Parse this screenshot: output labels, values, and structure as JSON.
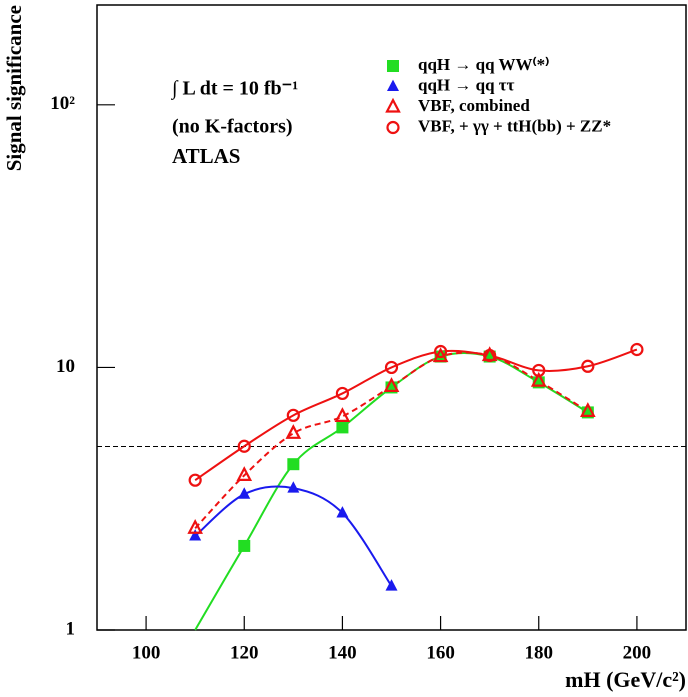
{
  "chart_data": {
    "type": "line",
    "annotations": [
      "∫ L dt = 10 fb⁻¹",
      "(no K-factors)",
      "ATLAS"
    ],
    "x_label": "mH (GeV/c²)",
    "y_label": "Signal significance",
    "log_y": true,
    "xlim": [
      90,
      210
    ],
    "ylim": [
      1,
      240
    ],
    "xticks": [
      100,
      120,
      140,
      160,
      180,
      200
    ],
    "yticks": [
      1,
      10,
      {
        "value": 100,
        "label": "10²"
      }
    ],
    "reference_line": 5,
    "series": [
      {
        "name": "qqH  → qq WW⁽*⁾",
        "color": "#22dd22",
        "marker": "square",
        "dashed": false,
        "x": [
          110,
          120,
          130,
          140,
          150,
          160,
          170,
          180,
          190
        ],
        "values": [
          1.0,
          2.09,
          4.28,
          5.91,
          8.39,
          11.0,
          11.0,
          8.77,
          6.74
        ]
      },
      {
        "name": "qqH  → qq ττ",
        "color": "#1a1aee",
        "marker": "triangle",
        "dashed": false,
        "x": [
          110,
          120,
          130,
          140,
          150
        ],
        "values": [
          2.28,
          3.29,
          3.47,
          2.79,
          1.47
        ]
      },
      {
        "name": "VBF, combined",
        "color": "#ee1111",
        "marker": "triangle-open",
        "dashed": true,
        "x": [
          110,
          120,
          130,
          140,
          150,
          160,
          170,
          180,
          190
        ],
        "values": [
          2.44,
          3.88,
          5.61,
          6.51,
          8.47,
          11.0,
          11.1,
          8.87,
          6.8
        ]
      },
      {
        "name": "VBF, + γγ + ttH(bb) + ZZ*",
        "color": "#ee1111",
        "marker": "circle-open",
        "dashed": false,
        "x": [
          110,
          120,
          130,
          140,
          150,
          160,
          170,
          180,
          190,
          200
        ],
        "values": [
          3.72,
          5.01,
          6.57,
          7.96,
          10.0,
          11.5,
          11.1,
          9.74,
          10.1,
          11.7
        ]
      }
    ]
  }
}
